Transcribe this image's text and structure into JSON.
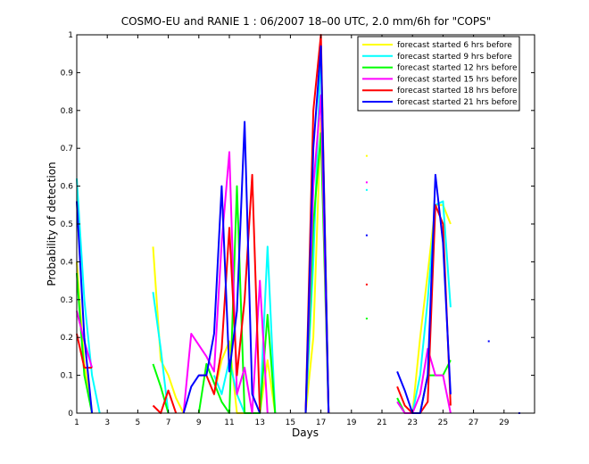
{
  "chart_data": {
    "type": "line",
    "title": "COSMO-EU and RANIE 1 : 06/2007 18–00 UTC, 2.0 mm/6h for \"COPS\"",
    "xlabel": "Days",
    "ylabel": "Probability of detection",
    "xlim": [
      1,
      31
    ],
    "ylim": [
      0,
      1
    ],
    "xticks": [
      1,
      3,
      5,
      7,
      9,
      11,
      13,
      15,
      17,
      19,
      21,
      23,
      25,
      27,
      29
    ],
    "yticks": [
      0,
      0.1,
      0.2,
      0.3,
      0.4,
      0.5,
      0.6,
      0.7,
      0.8,
      0.9,
      1
    ],
    "ytick_labels": [
      "0",
      "0.1",
      "0.2",
      "0.3",
      "0.4",
      "0.5",
      "0.6",
      "0.7",
      "0.8",
      "0.9",
      "1"
    ],
    "grid": false,
    "legend": "top-right",
    "series": [
      {
        "name": "forecast started 6 hrs before",
        "color": "#ffff00",
        "segments": [
          [
            [
              1,
              0.4
            ],
            [
              1.5,
              0.13
            ],
            [
              2,
              0.0
            ]
          ],
          [
            [
              6,
              0.44
            ],
            [
              6.5,
              0.14
            ],
            [
              7,
              0.1
            ],
            [
              7.5,
              0.04
            ],
            [
              8,
              0.0
            ]
          ],
          [
            [
              10,
              0.05
            ],
            [
              10.5,
              0.14
            ],
            [
              11,
              0.19
            ],
            [
              11.5,
              0.0
            ],
            [
              12,
              0.0
            ],
            [
              12.5,
              0.0
            ],
            [
              13,
              0.0
            ],
            [
              13.5,
              0.14
            ],
            [
              14,
              0.0
            ]
          ],
          [
            [
              16,
              0.0
            ],
            [
              16.5,
              0.2
            ],
            [
              17,
              0.78
            ],
            [
              17.5,
              0.0
            ]
          ],
          [
            [
              23,
              0.0
            ],
            [
              23.5,
              0.2
            ],
            [
              24,
              0.37
            ],
            [
              24.5,
              0.55
            ],
            [
              25,
              0.55
            ],
            [
              25.5,
              0.5
            ]
          ]
        ],
        "points": [
          [
            20,
            0.68
          ]
        ]
      },
      {
        "name": "forecast started 9 hrs before",
        "color": "#00ffff",
        "segments": [
          [
            [
              1,
              0.62
            ],
            [
              1.5,
              0.3
            ],
            [
              2,
              0.1
            ],
            [
              2.5,
              0.0
            ]
          ],
          [
            [
              6,
              0.32
            ],
            [
              6.5,
              0.17
            ],
            [
              7,
              0.0
            ]
          ],
          [
            [
              10,
              0.1
            ],
            [
              10.5,
              0.05
            ],
            [
              11,
              0.14
            ],
            [
              11.5,
              0.05
            ],
            [
              12,
              0.0
            ],
            [
              12.5,
              0.0
            ],
            [
              13,
              0.0
            ],
            [
              13.5,
              0.44
            ],
            [
              14,
              0.0
            ]
          ],
          [
            [
              16,
              0.0
            ],
            [
              16.5,
              0.4
            ],
            [
              17,
              0.97
            ],
            [
              17.5,
              0.0
            ]
          ],
          [
            [
              22,
              0.03
            ],
            [
              22.5,
              0.0
            ],
            [
              23,
              0.0
            ],
            [
              23.5,
              0.1
            ],
            [
              24,
              0.3
            ],
            [
              24.5,
              0.55
            ],
            [
              25,
              0.56
            ],
            [
              25.5,
              0.28
            ]
          ]
        ],
        "points": [
          [
            20,
            0.59
          ]
        ]
      },
      {
        "name": "forecast started 12 hrs before",
        "color": "#00ff00",
        "segments": [
          [
            [
              1,
              0.37
            ],
            [
              1.5,
              0.1
            ],
            [
              2,
              0.0
            ]
          ],
          [
            [
              6,
              0.13
            ],
            [
              6.5,
              0.07
            ],
            [
              7,
              0.0
            ]
          ],
          [
            [
              9,
              0.0
            ],
            [
              9.5,
              0.13
            ],
            [
              10,
              0.08
            ],
            [
              10.5,
              0.03
            ],
            [
              11,
              0.0
            ],
            [
              11.5,
              0.6
            ],
            [
              12,
              0.0
            ],
            [
              12.5,
              0.0
            ],
            [
              13,
              0.0
            ],
            [
              13.5,
              0.26
            ],
            [
              14,
              0.0
            ]
          ],
          [
            [
              16,
              0.0
            ],
            [
              16.5,
              0.5
            ],
            [
              17,
              0.74
            ],
            [
              17.5,
              0.0
            ]
          ],
          [
            [
              22,
              0.04
            ],
            [
              22.5,
              0.0
            ],
            [
              23,
              0.0
            ],
            [
              23.5,
              0.0
            ],
            [
              24,
              0.1
            ],
            [
              24.5,
              0.1
            ],
            [
              25,
              0.1
            ],
            [
              25.5,
              0.14
            ]
          ]
        ],
        "points": [
          [
            20,
            0.25
          ]
        ]
      },
      {
        "name": "forecast started 15 hrs before",
        "color": "#ff00ff",
        "segments": [
          [
            [
              1,
              0.27
            ],
            [
              1.5,
              0.19
            ],
            [
              2,
              0.12
            ]
          ],
          [
            [
              8,
              0.0
            ],
            [
              8.5,
              0.21
            ],
            [
              9,
              0.18
            ],
            [
              9.5,
              0.15
            ],
            [
              10,
              0.11
            ],
            [
              10.5,
              0.45
            ],
            [
              11,
              0.69
            ],
            [
              11.5,
              0.05
            ],
            [
              12,
              0.12
            ],
            [
              12.5,
              0.0
            ],
            [
              13,
              0.35
            ],
            [
              13.5,
              0.0
            ]
          ],
          [
            [
              16,
              0.0
            ],
            [
              16.5,
              0.6
            ],
            [
              17,
              0.84
            ],
            [
              17.5,
              0.0
            ]
          ],
          [
            [
              22,
              0.03
            ],
            [
              22.5,
              0.0
            ],
            [
              23,
              0.0
            ],
            [
              23.5,
              0.05
            ],
            [
              24,
              0.17
            ],
            [
              24.5,
              0.1
            ],
            [
              25,
              0.1
            ],
            [
              25.5,
              0.0
            ]
          ]
        ],
        "points": [
          [
            20,
            0.61
          ]
        ]
      },
      {
        "name": "forecast started 18 hrs before",
        "color": "#ff0000",
        "segments": [
          [
            [
              1,
              0.21
            ],
            [
              1.5,
              0.12
            ],
            [
              2,
              0.12
            ]
          ],
          [
            [
              6,
              0.02
            ],
            [
              6.5,
              0.0
            ],
            [
              7,
              0.06
            ],
            [
              7.5,
              0.0
            ]
          ],
          [
            [
              9,
              0.1
            ],
            [
              9.5,
              0.1
            ],
            [
              10,
              0.05
            ],
            [
              10.5,
              0.17
            ],
            [
              11,
              0.49
            ],
            [
              11.5,
              0.1
            ],
            [
              12,
              0.3
            ],
            [
              12.5,
              0.63
            ],
            [
              13,
              0.0
            ]
          ],
          [
            [
              16,
              0.0
            ],
            [
              16.5,
              0.8
            ],
            [
              17,
              1.0
            ],
            [
              17.5,
              0.0
            ]
          ],
          [
            [
              22,
              0.07
            ],
            [
              22.5,
              0.02
            ],
            [
              23,
              0.0
            ],
            [
              23.5,
              0.0
            ],
            [
              24,
              0.03
            ],
            [
              24.5,
              0.55
            ],
            [
              25,
              0.5
            ],
            [
              25.5,
              0.02
            ]
          ]
        ],
        "points": [
          [
            20,
            0.34
          ]
        ]
      },
      {
        "name": "forecast started 21 hrs before",
        "color": "#0000ff",
        "segments": [
          [
            [
              1,
              0.56
            ],
            [
              1.5,
              0.2
            ],
            [
              2,
              0.0
            ]
          ],
          [
            [
              8,
              0.0
            ],
            [
              8.5,
              0.07
            ],
            [
              9,
              0.1
            ],
            [
              9.5,
              0.1
            ],
            [
              10,
              0.21
            ],
            [
              10.5,
              0.6
            ],
            [
              11,
              0.11
            ],
            [
              11.5,
              0.27
            ],
            [
              12,
              0.77
            ],
            [
              12.5,
              0.05
            ],
            [
              13,
              0.0
            ]
          ],
          [
            [
              16,
              0.0
            ],
            [
              16.5,
              0.7
            ],
            [
              17,
              0.97
            ],
            [
              17.5,
              0.0
            ]
          ],
          [
            [
              22,
              0.11
            ],
            [
              22.5,
              0.06
            ],
            [
              23,
              0.0
            ],
            [
              23.5,
              0.0
            ],
            [
              24,
              0.1
            ],
            [
              24.5,
              0.63
            ],
            [
              25,
              0.45
            ],
            [
              25.5,
              0.05
            ]
          ]
        ],
        "points": [
          [
            20,
            0.47
          ],
          [
            28,
            0.19
          ],
          [
            30,
            0.0
          ]
        ]
      }
    ]
  }
}
